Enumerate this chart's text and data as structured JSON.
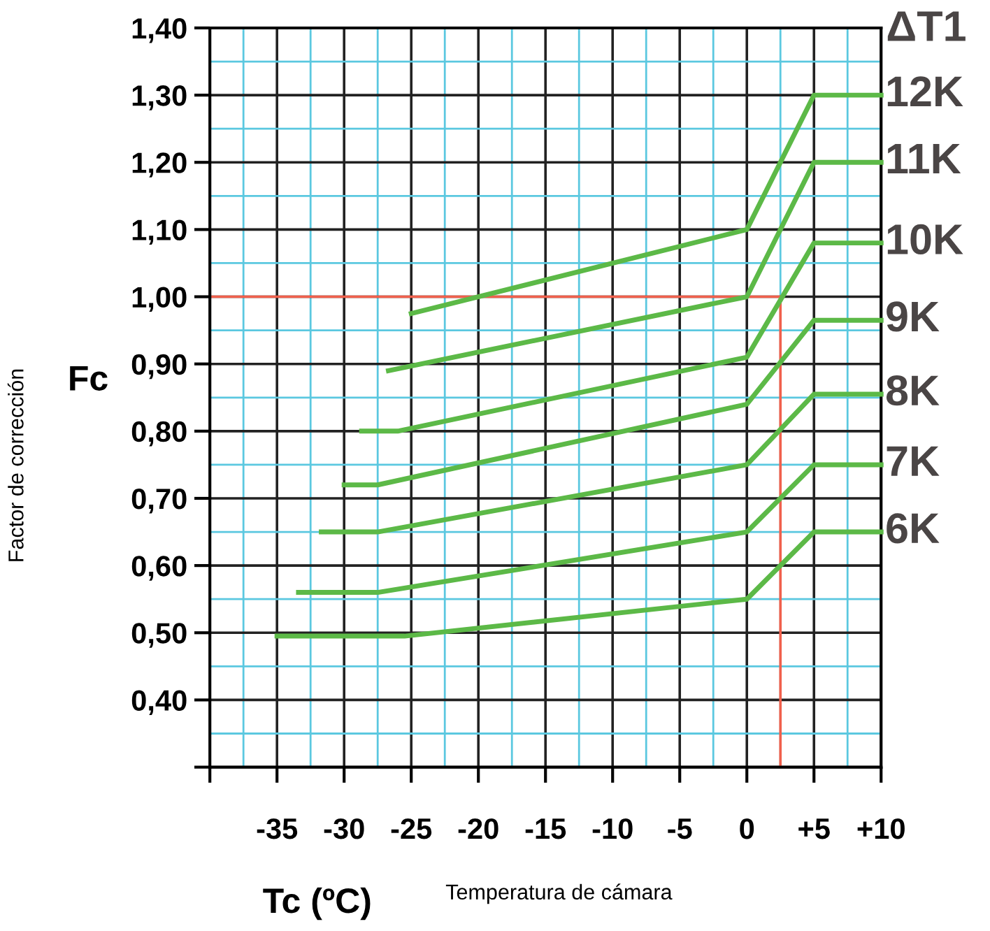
{
  "chart_data": {
    "type": "line",
    "xlabel": "Tc (ºC)",
    "ylabel": "Fc",
    "annotations": [
      "Factor de corrección",
      "Temperatura de cámara",
      "ΔT1"
    ],
    "xlim": [
      -40,
      10
    ],
    "ylim": [
      0.3,
      1.4
    ],
    "xticks": [
      {
        "value": -40,
        "label": null
      },
      {
        "value": -37.5,
        "label": null
      },
      -35,
      {
        "value": -32.5,
        "label": null
      },
      -30,
      {
        "value": -27.5,
        "label": null
      },
      -25,
      {
        "value": -22.5,
        "label": null
      },
      -20,
      {
        "value": -17.5,
        "label": null
      },
      -15,
      {
        "value": -12.5,
        "label": null
      },
      -10,
      {
        "value": -7.5,
        "label": null
      },
      -5,
      {
        "value": -2.5,
        "label": null
      },
      0,
      {
        "value": 2.5,
        "label": null
      },
      {
        "value": 5,
        "label": "+5"
      },
      {
        "value": 7.5,
        "label": null
      },
      {
        "value": 10,
        "label": "+10"
      }
    ],
    "yticks": [
      {
        "value": 0.3,
        "label": null
      },
      {
        "value": 0.35,
        "label": null
      },
      {
        "value": 0.4,
        "label": "0,40"
      },
      {
        "value": 0.45,
        "label": null
      },
      {
        "value": 0.5,
        "label": "0,50"
      },
      {
        "value": 0.55,
        "label": null
      },
      {
        "value": 0.6,
        "label": "0,60"
      },
      {
        "value": 0.65,
        "label": null
      },
      {
        "value": 0.7,
        "label": "0,70"
      },
      {
        "value": 0.75,
        "label": null
      },
      {
        "value": 0.8,
        "label": "0,80"
      },
      {
        "value": 0.85,
        "label": null
      },
      {
        "value": 0.9,
        "label": "0,90"
      },
      {
        "value": 0.95,
        "label": null
      },
      {
        "value": 1.0,
        "label": "1,00"
      },
      {
        "value": 1.05,
        "label": null
      },
      {
        "value": 1.1,
        "label": "1,10"
      },
      {
        "value": 1.15,
        "label": null
      },
      {
        "value": 1.2,
        "label": "1,20"
      },
      {
        "value": 1.25,
        "label": null
      },
      {
        "value": 1.3,
        "label": "1,30"
      },
      {
        "value": 1.35,
        "label": null
      },
      {
        "value": 1.4,
        "label": "1,40"
      }
    ],
    "grid": true,
    "legend": false,
    "marker": "none",
    "line_style": "solid",
    "ref_lines": [
      {
        "axis": "y",
        "value": 1.0,
        "color": "#f0604c"
      },
      {
        "axis": "x",
        "value": 2.5,
        "color": "#f0604c"
      }
    ],
    "series": [
      {
        "name": "12K",
        "color": "#5cb947",
        "x": [
          -25,
          0,
          5,
          10
        ],
        "values": [
          0.975,
          1.1,
          1.3,
          1.3
        ]
      },
      {
        "name": "11K",
        "color": "#5cb947",
        "x": [
          -26.7,
          0,
          5,
          10
        ],
        "values": [
          0.89,
          1.0,
          1.2,
          1.2
        ]
      },
      {
        "name": "10K",
        "color": "#5cb947",
        "x": [
          -28.7,
          -26,
          0,
          5,
          10
        ],
        "values": [
          0.8,
          0.8,
          0.91,
          1.08,
          1.08
        ]
      },
      {
        "name": "9K",
        "color": "#5cb947",
        "x": [
          -30,
          -27.5,
          0,
          5,
          10
        ],
        "values": [
          0.72,
          0.72,
          0.84,
          0.965,
          0.965
        ]
      },
      {
        "name": "8K",
        "color": "#5cb947",
        "x": [
          -31.7,
          -27.5,
          0,
          5,
          10
        ],
        "values": [
          0.65,
          0.65,
          0.75,
          0.855,
          0.855
        ]
      },
      {
        "name": "7K",
        "color": "#5cb947",
        "x": [
          -33.4,
          -27.5,
          0,
          5,
          10
        ],
        "values": [
          0.56,
          0.56,
          0.65,
          0.75,
          0.75
        ]
      },
      {
        "name": "6K",
        "color": "#5cb947",
        "x": [
          -35,
          -25.5,
          0,
          5,
          10
        ],
        "values": [
          0.495,
          0.495,
          0.55,
          0.65,
          0.65
        ]
      }
    ]
  }
}
